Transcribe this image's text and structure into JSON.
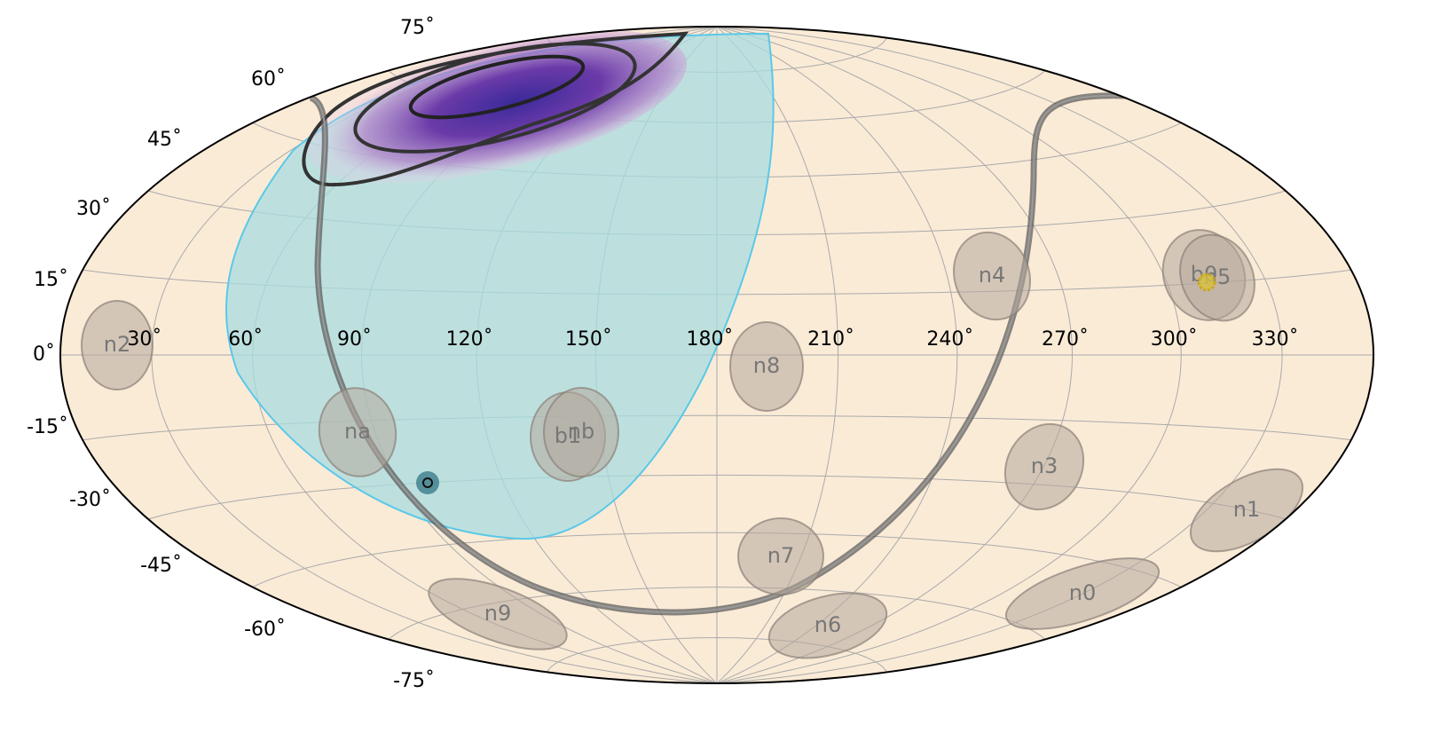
{
  "lon_ticks": [
    {
      "value": 330,
      "label": "330˚"
    },
    {
      "value": 300,
      "label": "300˚"
    },
    {
      "value": 270,
      "label": "270˚"
    },
    {
      "value": 240,
      "label": "240˚"
    },
    {
      "value": 210,
      "label": "210˚"
    },
    {
      "value": 180,
      "label": "180˚"
    },
    {
      "value": 150,
      "label": "150˚"
    },
    {
      "value": 120,
      "label": "120˚"
    },
    {
      "value": 90,
      "label": "90˚"
    },
    {
      "value": 60,
      "label": "60˚"
    },
    {
      "value": 30,
      "label": "30˚"
    }
  ],
  "lat_ticks": [
    {
      "value": 75,
      "label": "75˚"
    },
    {
      "value": 60,
      "label": "60˚"
    },
    {
      "value": 45,
      "label": "45˚"
    },
    {
      "value": 30,
      "label": "30˚"
    },
    {
      "value": 15,
      "label": "15˚"
    },
    {
      "value": 0,
      "label": "0˚"
    },
    {
      "value": -15,
      "label": "-15˚"
    },
    {
      "value": -30,
      "label": "-30˚"
    },
    {
      "value": -45,
      "label": "-45˚"
    },
    {
      "value": -60,
      "label": "-60˚"
    },
    {
      "value": -75,
      "label": "-75˚"
    }
  ],
  "detectors": [
    "n2",
    "na",
    "b1",
    "nb",
    "n8",
    "n4",
    "b0",
    "n5",
    "n3",
    "n1",
    "n0",
    "n7",
    "n6",
    "n9"
  ]
}
